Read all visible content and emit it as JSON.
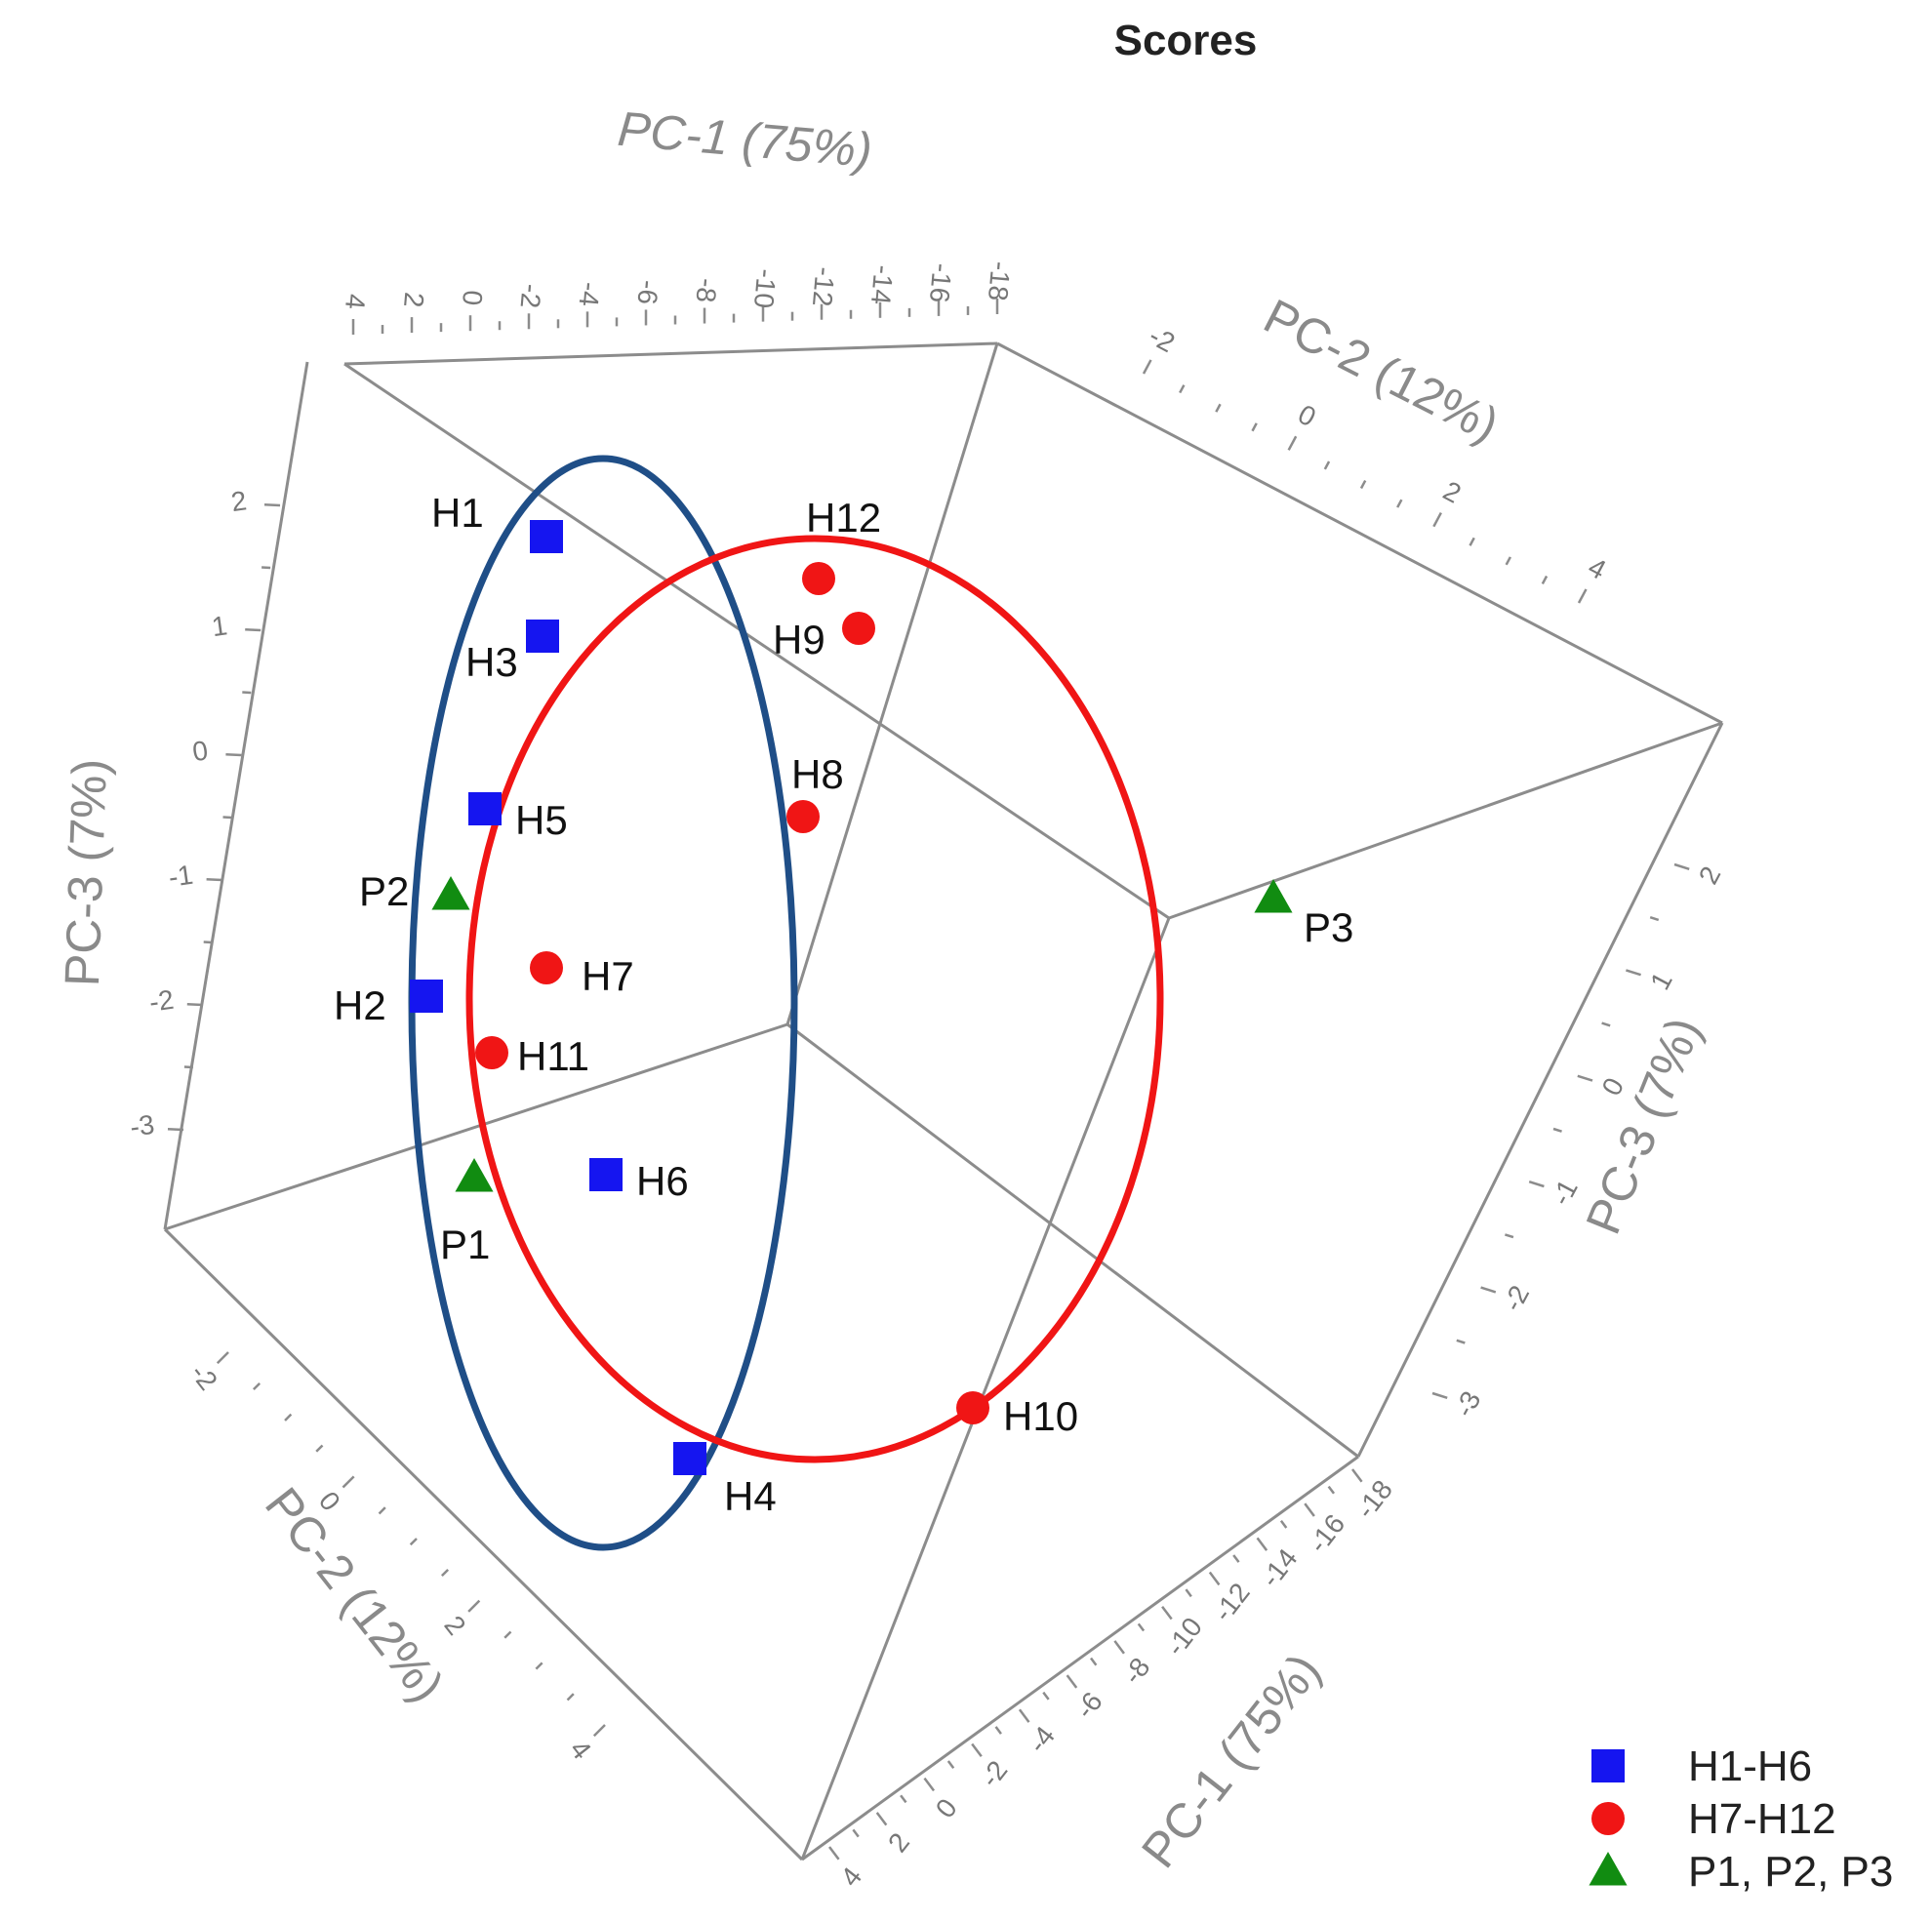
{
  "chart_data": {
    "type": "scatter",
    "title": "Scores",
    "axes": {
      "pc1": {
        "label": "PC-1 (75%)",
        "ticks": [
          "4",
          "2",
          "0",
          "-2",
          "-4",
          "-6",
          "-8",
          "-10",
          "-12",
          "-14",
          "-16",
          "-18"
        ]
      },
      "pc2": {
        "label": "PC-2 (12%)",
        "ticks": [
          "-2",
          "0",
          "2",
          "4"
        ]
      },
      "pc3": {
        "label": "PC-3 (7%)",
        "ticks": [
          "2",
          "1",
          "0",
          "-1",
          "-2",
          "-3"
        ]
      }
    },
    "legend": [
      {
        "label": "H1-H6",
        "marker": "square",
        "color": "#1515f0"
      },
      {
        "label": "H7-H12",
        "marker": "circle",
        "color": "#f01515"
      },
      {
        "label": "P1, P2, P3",
        "marker": "triangle",
        "color": "#118c11"
      }
    ],
    "points": [
      {
        "label": "H1",
        "group": "H1-H6",
        "pc3": 1.8
      },
      {
        "label": "H3",
        "group": "H1-H6",
        "pc3": 1.05
      },
      {
        "label": "H5",
        "group": "H1-H6",
        "pc3": -0.25
      },
      {
        "label": "H2",
        "group": "H1-H6",
        "pc3": -1.75
      },
      {
        "label": "H6",
        "group": "H1-H6"
      },
      {
        "label": "H4",
        "group": "H1-H6"
      },
      {
        "label": "H12",
        "group": "H7-H12"
      },
      {
        "label": "H9",
        "group": "H7-H12"
      },
      {
        "label": "H8",
        "group": "H7-H12"
      },
      {
        "label": "H7",
        "group": "H7-H12"
      },
      {
        "label": "H11",
        "group": "H7-H12"
      },
      {
        "label": "H10",
        "group": "H7-H12"
      },
      {
        "label": "P2",
        "group": "P1, P2, P3"
      },
      {
        "label": "P1",
        "group": "P1, P2, P3"
      },
      {
        "label": "P3",
        "group": "P1, P2, P3"
      }
    ],
    "ellipses": [
      {
        "group": "H1-H6",
        "color": "#1f4e87"
      },
      {
        "group": "H7-H12",
        "color": "#f01515"
      }
    ]
  }
}
